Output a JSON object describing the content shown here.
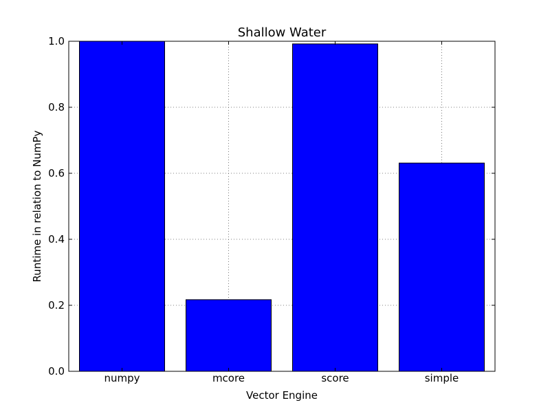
{
  "chart_data": {
    "type": "bar",
    "title": "Shallow Water",
    "xlabel": "Vector Engine",
    "ylabel": "Runtime in relation to NumPy",
    "categories": [
      "numpy",
      "mcore",
      "score",
      "simple"
    ],
    "values": [
      1.0,
      0.217,
      0.992,
      0.631
    ],
    "ylim": [
      0.0,
      1.0
    ],
    "yticks": [
      "0.0",
      "0.2",
      "0.4",
      "0.6",
      "0.8",
      "1.0"
    ],
    "grid": true,
    "bar_color": "#0000ff",
    "bar_edge_color": "#000000",
    "grid_color": "#555555"
  }
}
